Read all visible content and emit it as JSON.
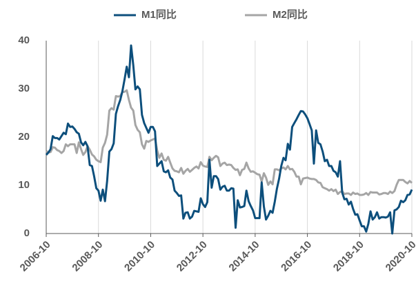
{
  "chart_data": {
    "type": "line",
    "x": [
      "2006-10",
      "2006-11",
      "2006-12",
      "2007-01",
      "2007-02",
      "2007-03",
      "2007-04",
      "2007-05",
      "2007-06",
      "2007-07",
      "2007-08",
      "2007-09",
      "2007-10",
      "2007-11",
      "2007-12",
      "2008-01",
      "2008-02",
      "2008-03",
      "2008-04",
      "2008-05",
      "2008-06",
      "2008-07",
      "2008-08",
      "2008-09",
      "2008-10",
      "2008-11",
      "2008-12",
      "2009-01",
      "2009-02",
      "2009-03",
      "2009-04",
      "2009-05",
      "2009-06",
      "2009-07",
      "2009-08",
      "2009-09",
      "2009-10",
      "2009-11",
      "2009-12",
      "2010-01",
      "2010-02",
      "2010-03",
      "2010-04",
      "2010-05",
      "2010-06",
      "2010-07",
      "2010-08",
      "2010-09",
      "2010-10",
      "2010-11",
      "2010-12",
      "2011-01",
      "2011-02",
      "2011-03",
      "2011-04",
      "2011-05",
      "2011-06",
      "2011-07",
      "2011-08",
      "2011-09",
      "2011-10",
      "2011-11",
      "2011-12",
      "2012-01",
      "2012-02",
      "2012-03",
      "2012-04",
      "2012-05",
      "2012-06",
      "2012-07",
      "2012-08",
      "2012-09",
      "2012-10",
      "2012-11",
      "2012-12",
      "2013-01",
      "2013-02",
      "2013-03",
      "2013-04",
      "2013-05",
      "2013-06",
      "2013-07",
      "2013-08",
      "2013-09",
      "2013-10",
      "2013-11",
      "2013-12",
      "2014-01",
      "2014-02",
      "2014-03",
      "2014-04",
      "2014-05",
      "2014-06",
      "2014-07",
      "2014-08",
      "2014-09",
      "2014-10",
      "2014-11",
      "2014-12",
      "2015-01",
      "2015-02",
      "2015-03",
      "2015-04",
      "2015-05",
      "2015-06",
      "2015-07",
      "2015-08",
      "2015-09",
      "2015-10",
      "2015-11",
      "2015-12",
      "2016-01",
      "2016-02",
      "2016-03",
      "2016-04",
      "2016-05",
      "2016-06",
      "2016-07",
      "2016-08",
      "2016-09",
      "2016-10",
      "2016-11",
      "2016-12",
      "2017-01",
      "2017-02",
      "2017-03",
      "2017-04",
      "2017-05",
      "2017-06",
      "2017-07",
      "2017-08",
      "2017-09",
      "2017-10",
      "2017-11",
      "2017-12",
      "2018-01",
      "2018-02",
      "2018-03",
      "2018-04",
      "2018-05",
      "2018-06",
      "2018-07",
      "2018-08",
      "2018-09",
      "2018-10",
      "2018-11",
      "2018-12",
      "2019-01",
      "2019-02",
      "2019-03",
      "2019-04",
      "2019-05",
      "2019-06",
      "2019-07",
      "2019-08",
      "2019-09",
      "2019-10",
      "2019-11",
      "2019-12",
      "2020-01",
      "2020-02",
      "2020-03",
      "2020-04",
      "2020-05",
      "2020-06",
      "2020-07",
      "2020-08",
      "2020-09",
      "2020-10"
    ],
    "series": [
      {
        "name": "M1同比",
        "color": "#0d4f7c",
        "values": [
          16.3,
          16.8,
          17.5,
          20.2,
          19.8,
          19.8,
          19.5,
          20.2,
          20.9,
          20.6,
          22.8,
          22.1,
          22.2,
          21.7,
          21.0,
          20.7,
          18.9,
          18.3,
          19.0,
          18.1,
          14.2,
          14.0,
          11.9,
          9.4,
          8.9,
          6.8,
          9.1,
          6.7,
          10.9,
          17.0,
          17.5,
          18.7,
          24.8,
          26.4,
          27.7,
          29.5,
          32.0,
          34.6,
          32.4,
          39.0,
          34.9,
          29.9,
          30.5,
          29.9,
          24.6,
          22.9,
          21.9,
          20.9,
          22.1,
          22.1,
          21.2,
          14.0,
          14.5,
          15.0,
          12.9,
          12.7,
          13.1,
          11.6,
          11.2,
          8.9,
          8.4,
          7.8,
          7.9,
          3.1,
          4.3,
          4.4,
          3.1,
          3.5,
          4.7,
          4.6,
          4.5,
          7.3,
          6.1,
          5.5,
          6.5,
          15.3,
          9.5,
          11.9,
          11.9,
          11.3,
          9.1,
          9.7,
          9.9,
          8.9,
          8.9,
          9.4,
          9.3,
          1.2,
          6.9,
          5.4,
          5.5,
          5.7,
          8.9,
          6.7,
          5.7,
          4.8,
          3.2,
          3.2,
          3.2,
          10.6,
          5.6,
          2.9,
          3.7,
          4.7,
          4.3,
          6.6,
          9.3,
          11.4,
          14.0,
          15.7,
          15.2,
          18.6,
          17.4,
          22.1,
          22.9,
          23.7,
          24.6,
          25.4,
          25.3,
          24.7,
          23.9,
          22.7,
          21.4,
          14.5,
          21.4,
          18.8,
          18.5,
          17.0,
          15.0,
          15.3,
          14.0,
          14.0,
          13.0,
          12.7,
          11.8,
          15.0,
          8.5,
          7.1,
          7.2,
          6.0,
          6.6,
          5.1,
          3.9,
          4.0,
          2.7,
          1.5,
          1.5,
          0.4,
          2.0,
          4.6,
          2.9,
          3.4,
          4.4,
          3.1,
          3.4,
          3.4,
          3.3,
          3.5,
          4.4,
          0.0,
          4.8,
          5.0,
          5.5,
          6.8,
          6.5,
          6.9,
          8.0,
          8.1,
          9.1
        ]
      },
      {
        "name": "M2同比",
        "color": "#a5a5a5",
        "values": [
          17.1,
          16.8,
          16.9,
          17.9,
          17.8,
          17.3,
          17.1,
          16.7,
          17.1,
          18.5,
          18.1,
          18.5,
          18.5,
          18.5,
          16.7,
          18.9,
          17.5,
          16.3,
          16.9,
          18.1,
          17.4,
          16.4,
          16.0,
          15.3,
          15.0,
          14.8,
          17.8,
          18.8,
          20.5,
          25.5,
          26.0,
          25.7,
          28.5,
          28.4,
          28.5,
          29.3,
          29.4,
          29.7,
          27.7,
          26.1,
          25.5,
          22.5,
          21.5,
          21.0,
          18.5,
          17.6,
          19.2,
          19.0,
          19.3,
          19.5,
          19.7,
          17.2,
          15.7,
          16.6,
          15.3,
          15.1,
          15.9,
          14.7,
          13.5,
          13.0,
          12.9,
          12.7,
          13.6,
          12.4,
          13.0,
          13.4,
          12.8,
          13.2,
          13.6,
          13.9,
          13.5,
          14.8,
          14.1,
          13.9,
          13.8,
          15.9,
          15.2,
          15.7,
          16.1,
          15.8,
          14.0,
          14.5,
          14.7,
          14.2,
          14.3,
          14.2,
          13.6,
          13.2,
          13.3,
          12.1,
          13.2,
          13.4,
          14.7,
          13.5,
          12.8,
          12.9,
          12.6,
          12.3,
          12.2,
          10.8,
          12.5,
          11.6,
          10.1,
          10.8,
          10.2,
          13.3,
          13.3,
          13.1,
          13.5,
          13.7,
          13.3,
          14.0,
          13.3,
          13.4,
          12.8,
          11.8,
          11.8,
          10.2,
          11.4,
          11.5,
          11.6,
          11.4,
          11.3,
          11.3,
          11.1,
          10.6,
          10.5,
          9.6,
          9.4,
          9.2,
          8.9,
          9.2,
          8.8,
          9.1,
          8.2,
          8.6,
          8.8,
          8.2,
          8.3,
          8.3,
          8.0,
          8.5,
          8.2,
          8.3,
          8.0,
          8.0,
          8.1,
          8.4,
          8.0,
          8.6,
          8.5,
          8.5,
          8.5,
          8.1,
          8.2,
          8.4,
          8.4,
          8.2,
          8.7,
          8.4,
          8.8,
          10.1,
          11.1,
          11.1,
          11.1,
          10.7,
          10.4,
          10.9,
          10.5
        ]
      }
    ],
    "xticks": [
      "2006-10",
      "2008-10",
      "2010-10",
      "2012-10",
      "2014-10",
      "2016-10",
      "2018-10",
      "2020-10"
    ],
    "ylim": [
      0,
      40
    ],
    "yticks": [
      0,
      10,
      20,
      30,
      40
    ],
    "grid": true,
    "legend": "top"
  }
}
